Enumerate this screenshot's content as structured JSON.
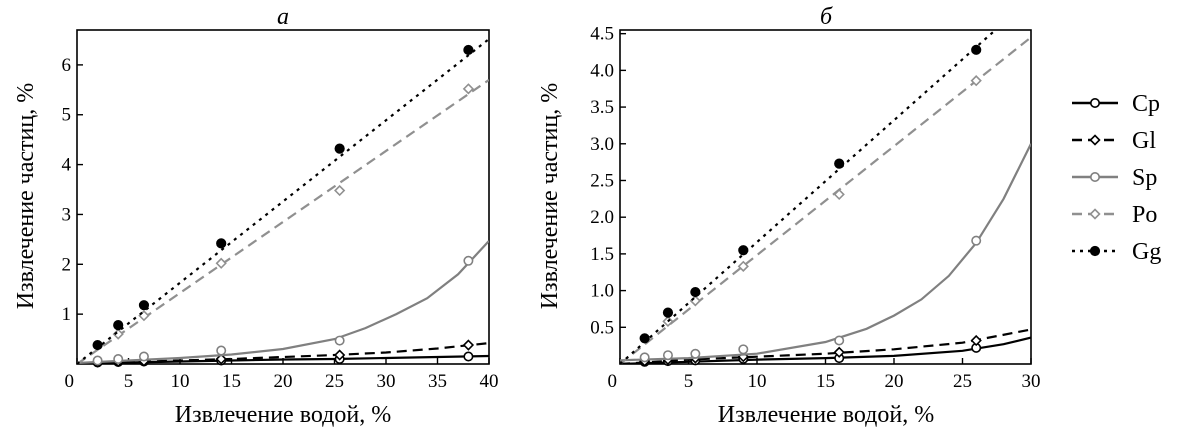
{
  "chart_data": [
    {
      "type": "line",
      "title": "а",
      "xlabel": "Извлечение водой, %",
      "ylabel": "Извлечение частиц, %",
      "xlim": [
        0,
        40
      ],
      "ylim": [
        0,
        6.7
      ],
      "x_ticks": [
        {
          "v": 0,
          "label": "0"
        },
        {
          "v": 5,
          "label": "5"
        },
        {
          "v": 10,
          "label": "10"
        },
        {
          "v": 15,
          "label": "15"
        },
        {
          "v": 20,
          "label": "20"
        },
        {
          "v": 25,
          "label": "25"
        },
        {
          "v": 30,
          "label": "30"
        },
        {
          "v": 35,
          "label": "35"
        },
        {
          "v": 40,
          "label": "40"
        }
      ],
      "y_ticks": [
        {
          "v": 1,
          "label": "1"
        },
        {
          "v": 2,
          "label": "2"
        },
        {
          "v": 3,
          "label": "3"
        },
        {
          "v": 4,
          "label": "4"
        },
        {
          "v": 5,
          "label": "5"
        },
        {
          "v": 6,
          "label": "6"
        }
      ],
      "series": [
        {
          "name": "Cp",
          "points": [
            [
              2,
              0.03
            ],
            [
              4,
              0.04
            ],
            [
              6.5,
              0.05
            ],
            [
              14,
              0.07
            ],
            [
              25.5,
              0.1
            ],
            [
              38,
              0.15
            ]
          ],
          "curve": [
            [
              0,
              0
            ],
            [
              5,
              0.03
            ],
            [
              10,
              0.05
            ],
            [
              15,
              0.07
            ],
            [
              20,
              0.09
            ],
            [
              25,
              0.1
            ],
            [
              30,
              0.12
            ],
            [
              35,
              0.14
            ],
            [
              40,
              0.16
            ]
          ]
        },
        {
          "name": "Gl",
          "points": [
            [
              2,
              0.04
            ],
            [
              4,
              0.05
            ],
            [
              6.5,
              0.06
            ],
            [
              14,
              0.1
            ],
            [
              25.5,
              0.18
            ],
            [
              38,
              0.38
            ]
          ],
          "curve": [
            [
              0,
              0
            ],
            [
              5,
              0.04
            ],
            [
              10,
              0.07
            ],
            [
              15,
              0.1
            ],
            [
              20,
              0.14
            ],
            [
              25,
              0.18
            ],
            [
              30,
              0.23
            ],
            [
              35,
              0.31
            ],
            [
              40,
              0.42
            ]
          ]
        },
        {
          "name": "Sp",
          "points": [
            [
              2,
              0.07
            ],
            [
              4,
              0.1
            ],
            [
              6.5,
              0.15
            ],
            [
              14,
              0.27
            ],
            [
              25.5,
              0.47
            ],
            [
              38,
              2.07
            ]
          ],
          "curve": [
            [
              0,
              0.02
            ],
            [
              5,
              0.07
            ],
            [
              10,
              0.12
            ],
            [
              15,
              0.19
            ],
            [
              20,
              0.3
            ],
            [
              25,
              0.5
            ],
            [
              28,
              0.72
            ],
            [
              31,
              1.0
            ],
            [
              34,
              1.32
            ],
            [
              37,
              1.8
            ],
            [
              40,
              2.47
            ]
          ]
        },
        {
          "name": "Po",
          "points": [
            [
              4,
              0.6
            ],
            [
              6.5,
              0.97
            ],
            [
              14,
              2.02
            ],
            [
              25.5,
              3.48
            ],
            [
              38,
              5.52
            ]
          ],
          "curve": [
            [
              0,
              0
            ],
            [
              40,
              5.7
            ]
          ]
        },
        {
          "name": "Gg",
          "points": [
            [
              2,
              0.38
            ],
            [
              4,
              0.78
            ],
            [
              6.5,
              1.18
            ],
            [
              14,
              2.42
            ],
            [
              25.5,
              4.32
            ],
            [
              38,
              6.3
            ]
          ],
          "curve": [
            [
              0,
              0
            ],
            [
              40,
              6.52
            ]
          ]
        }
      ]
    },
    {
      "type": "line",
      "title": "б",
      "xlabel": "Извлечение водой, %",
      "ylabel": "Извлечение частиц, %",
      "xlim": [
        0,
        30
      ],
      "ylim": [
        0,
        4.55
      ],
      "x_ticks": [
        {
          "v": 0,
          "label": "0"
        },
        {
          "v": 5,
          "label": "5"
        },
        {
          "v": 10,
          "label": "10"
        },
        {
          "v": 15,
          "label": "15"
        },
        {
          "v": 20,
          "label": "20"
        },
        {
          "v": 25,
          "label": "25"
        },
        {
          "v": 30,
          "label": "30"
        }
      ],
      "y_ticks": [
        {
          "v": 0.5,
          "label": "0.5"
        },
        {
          "v": 1.0,
          "label": "1.0"
        },
        {
          "v": 1.5,
          "label": "1.5"
        },
        {
          "v": 2.0,
          "label": "2.0"
        },
        {
          "v": 2.5,
          "label": "2.5"
        },
        {
          "v": 3.0,
          "label": "3.0"
        },
        {
          "v": 3.5,
          "label": "3.5"
        },
        {
          "v": 4.0,
          "label": "4.0"
        },
        {
          "v": 4.5,
          "label": "4.5"
        }
      ],
      "series": [
        {
          "name": "Cp",
          "points": [
            [
              1.8,
              0.03
            ],
            [
              3.5,
              0.04
            ],
            [
              5.5,
              0.05
            ],
            [
              9,
              0.07
            ],
            [
              16,
              0.08
            ],
            [
              26,
              0.22
            ]
          ],
          "curve": [
            [
              0,
              0
            ],
            [
              5,
              0.03
            ],
            [
              10,
              0.06
            ],
            [
              15,
              0.08
            ],
            [
              20,
              0.11
            ],
            [
              25,
              0.18
            ],
            [
              28,
              0.27
            ],
            [
              30,
              0.36
            ]
          ]
        },
        {
          "name": "Gl",
          "points": [
            [
              1.8,
              0.04
            ],
            [
              3.5,
              0.06
            ],
            [
              5.5,
              0.08
            ],
            [
              9,
              0.1
            ],
            [
              16,
              0.16
            ],
            [
              26,
              0.32
            ]
          ],
          "curve": [
            [
              0,
              0
            ],
            [
              5,
              0.06
            ],
            [
              10,
              0.1
            ],
            [
              15,
              0.14
            ],
            [
              20,
              0.2
            ],
            [
              25,
              0.29
            ],
            [
              30,
              0.47
            ]
          ]
        },
        {
          "name": "Sp",
          "points": [
            [
              1.8,
              0.09
            ],
            [
              3.5,
              0.12
            ],
            [
              5.5,
              0.14
            ],
            [
              9,
              0.2
            ],
            [
              16,
              0.32
            ],
            [
              26,
              1.68
            ]
          ],
          "curve": [
            [
              0,
              0.05
            ],
            [
              5,
              0.08
            ],
            [
              10,
              0.14
            ],
            [
              15,
              0.3
            ],
            [
              18,
              0.48
            ],
            [
              20,
              0.66
            ],
            [
              22,
              0.88
            ],
            [
              24,
              1.2
            ],
            [
              26,
              1.65
            ],
            [
              28,
              2.25
            ],
            [
              30,
              3.0
            ]
          ]
        },
        {
          "name": "Po",
          "points": [
            [
              3.5,
              0.58
            ],
            [
              5.5,
              0.86
            ],
            [
              9,
              1.33
            ],
            [
              16,
              2.31
            ],
            [
              26,
              3.86
            ]
          ],
          "curve": [
            [
              0,
              0
            ],
            [
              30,
              4.45
            ]
          ]
        },
        {
          "name": "Gg",
          "points": [
            [
              1.8,
              0.35
            ],
            [
              3.5,
              0.7
            ],
            [
              5.5,
              0.98
            ],
            [
              9,
              1.55
            ],
            [
              16,
              2.73
            ],
            [
              26,
              4.28
            ]
          ],
          "curve": [
            [
              0,
              0
            ],
            [
              27.4,
              4.55
            ]
          ]
        }
      ]
    }
  ],
  "legend": {
    "position": "right",
    "items": [
      {
        "name": "Cp",
        "color": "#000000",
        "dash": "",
        "marker": "circle-open"
      },
      {
        "name": "Gl",
        "color": "#000000",
        "dash": "10,6",
        "marker": "diamond-open"
      },
      {
        "name": "Sp",
        "color": "#808080",
        "dash": "",
        "marker": "circle-open"
      },
      {
        "name": "Po",
        "color": "#909090",
        "dash": "10,6",
        "marker": "diamond-open"
      },
      {
        "name": "Gg",
        "color": "#000000",
        "dash": "3,5",
        "marker": "circle-filled"
      }
    ]
  }
}
